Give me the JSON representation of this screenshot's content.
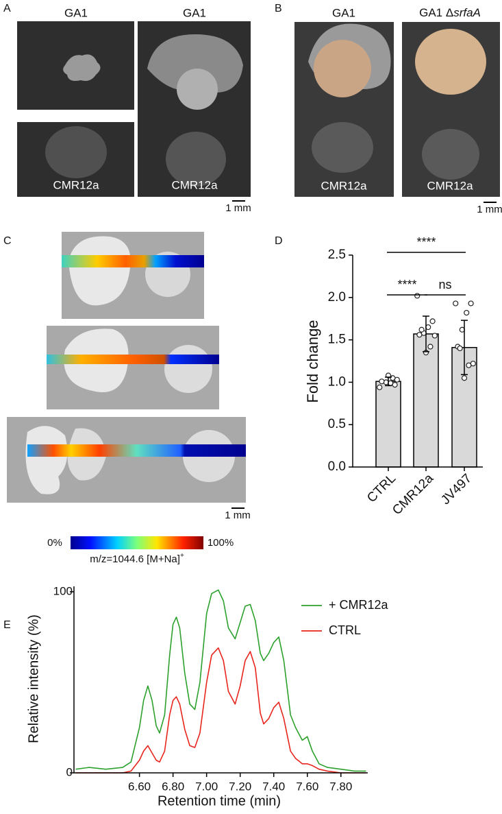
{
  "panels": {
    "A": {
      "letter": "A",
      "top_labels": [
        "GA1",
        "GA1"
      ],
      "bottom_labels": [
        "CMR12a",
        "CMR12a"
      ],
      "scale": "1 mm"
    },
    "B": {
      "letter": "B",
      "left_label": "GA1",
      "right_label_prefix": "GA1 Δ",
      "right_label_italic": "srfaA",
      "bottom_labels": [
        "CMR12a",
        "CMR12a"
      ],
      "scale": "1 mm"
    },
    "C": {
      "letter": "C",
      "scale": "1 mm",
      "colorbar_min": "0%",
      "colorbar_max": "100%",
      "colorbar_label": "m/z=1044.6 [M+Na]",
      "colorbar_sup": "+"
    },
    "D": {
      "letter": "D"
    },
    "E": {
      "letter": "E"
    }
  },
  "chart_data": [
    {
      "type": "bar",
      "ylabel": "Fold change",
      "categories": [
        "CTRL",
        "CMR12a",
        "JV497"
      ],
      "values": [
        1.01,
        1.57,
        1.41
      ],
      "errors": [
        0.05,
        0.21,
        0.32
      ],
      "points": [
        [
          0.94,
          0.97,
          0.99,
          1.0,
          1.01,
          1.03,
          1.05,
          1.08
        ],
        [
          2.02,
          1.72,
          1.65,
          1.58,
          1.56,
          1.55,
          1.42,
          1.35,
          1.62
        ],
        [
          1.93,
          1.93,
          1.82,
          1.62,
          1.42,
          1.22,
          1.2,
          1.05,
          1.4
        ]
      ],
      "color": "#d9d9d9",
      "ylim": [
        0,
        2.5
      ],
      "yticks": [
        {
          "value": 0,
          "label": "0.0"
        },
        {
          "value": 0.5,
          "label": "0.5"
        },
        {
          "value": 1,
          "label": "1.0"
        },
        {
          "value": 1.5,
          "label": "1.5"
        },
        {
          "value": 2,
          "label": "2.0"
        },
        {
          "value": 2.5,
          "label": "2.5"
        }
      ],
      "annotations": [
        {
          "text": "****",
          "from": 0,
          "to": 2
        },
        {
          "text": "****",
          "from": 0,
          "to": 1
        },
        {
          "text": "ns",
          "from": 1,
          "to": 2
        }
      ]
    },
    {
      "type": "line",
      "xlabel": "Retention time (min)",
      "ylabel": "Relative intensity (%)",
      "x": [
        6.22,
        6.3,
        6.4,
        6.5,
        6.55,
        6.6,
        6.625,
        6.65,
        6.675,
        6.7,
        6.72,
        6.75,
        6.78,
        6.8,
        6.82,
        6.84,
        6.87,
        6.9,
        6.93,
        6.96,
        7.0,
        7.03,
        7.07,
        7.1,
        7.13,
        7.17,
        7.2,
        7.23,
        7.26,
        7.29,
        7.32,
        7.34,
        7.37,
        7.4,
        7.43,
        7.46,
        7.5,
        7.53,
        7.57,
        7.6,
        7.63,
        7.67,
        7.72,
        7.8,
        7.88,
        7.95
      ],
      "series": [
        {
          "name": "+ CMR12a",
          "color": "#2ca02c",
          "values": [
            2,
            3,
            2,
            3,
            6,
            25,
            40,
            48,
            40,
            26,
            22,
            32,
            65,
            82,
            86,
            80,
            55,
            38,
            35,
            50,
            88,
            99,
            101,
            95,
            80,
            74,
            83,
            92,
            93,
            84,
            66,
            62,
            66,
            72,
            75,
            62,
            32,
            25,
            18,
            20,
            12,
            5,
            3,
            2,
            1,
            1
          ]
        },
        {
          "name": "CTRL",
          "color": "#e8241c",
          "values": [
            0,
            0,
            0,
            0,
            1,
            7,
            12,
            15,
            11,
            7,
            6,
            12,
            32,
            40,
            42,
            38,
            24,
            15,
            14,
            22,
            50,
            65,
            69,
            62,
            45,
            38,
            48,
            62,
            67,
            58,
            33,
            27,
            30,
            36,
            39,
            30,
            12,
            8,
            5,
            5,
            4,
            2,
            1,
            0,
            0,
            0
          ]
        }
      ],
      "xlim": [
        6.21,
        7.96
      ],
      "ylim": [
        0,
        103
      ],
      "xticks": [
        {
          "value": 6.6,
          "label": "6.60"
        },
        {
          "value": 6.8,
          "label": "6.80"
        },
        {
          "value": 7,
          "label": "7.00"
        },
        {
          "value": 7.2,
          "label": "7.20"
        },
        {
          "value": 7.4,
          "label": "7.40"
        },
        {
          "value": 7.6,
          "label": "7.60"
        },
        {
          "value": 7.8,
          "label": "7.80"
        }
      ],
      "yticks": [
        0,
        100
      ]
    }
  ]
}
